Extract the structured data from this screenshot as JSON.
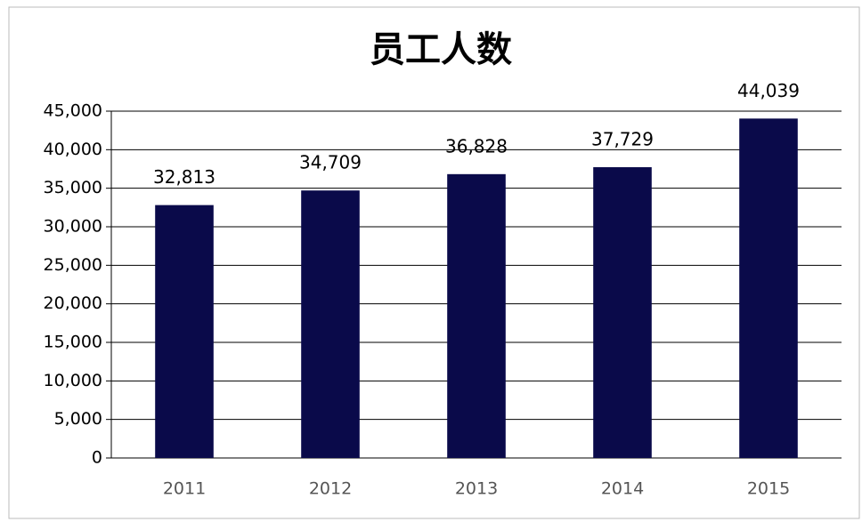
{
  "chart_data": {
    "type": "bar",
    "title": "员工人数",
    "categories": [
      "2011",
      "2012",
      "2013",
      "2014",
      "2015"
    ],
    "values": [
      32813,
      34709,
      36828,
      37729,
      44039
    ],
    "value_labels": [
      "32,813",
      "34,709",
      "36,828",
      "37,729",
      "44,039"
    ],
    "color": "#0a0a4a",
    "ylim": [
      0,
      45000
    ],
    "yticks": [
      0,
      {
        "value": 5000,
        "label": "5,000"
      },
      {
        "value": 10000,
        "label": "10,000"
      },
      {
        "value": 15000,
        "label": "15,000"
      },
      {
        "value": 20000,
        "label": "20,000"
      },
      {
        "value": 25000,
        "label": "25,000"
      },
      {
        "value": 30000,
        "label": "30,000"
      },
      {
        "value": 35000,
        "label": "35,000"
      },
      {
        "value": 40000,
        "label": "40,000"
      },
      {
        "value": 45000,
        "label": "45,000"
      }
    ],
    "grid": true
  }
}
